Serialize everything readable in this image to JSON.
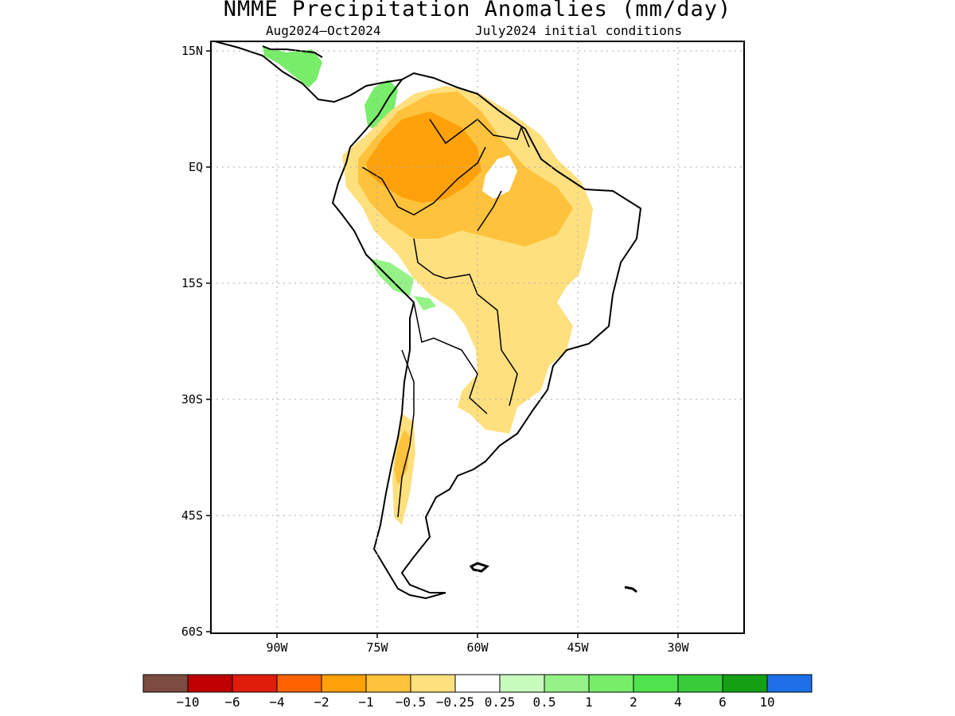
{
  "title": "NMME Precipitation Anomalies (mm/day)",
  "subtitle_left": "Aug2024–Oct2024",
  "subtitle_right": "July2024 initial conditions",
  "map": {
    "lat_labels": [
      "15N",
      "EQ",
      "15S",
      "30S",
      "45S",
      "60S"
    ],
    "lon_labels": [
      "90W",
      "75W",
      "60W",
      "45W",
      "30W"
    ]
  },
  "colorbar": {
    "colors": [
      "#7b4c3f",
      "#c00000",
      "#e01c0a",
      "#ff6200",
      "#ffa10a",
      "#ffc23c",
      "#ffe07f",
      "#ffffff",
      "#c8fcbe",
      "#94f286",
      "#78ed6a",
      "#4fe34e",
      "#38cc3a",
      "#13a113",
      "#1e6fe8"
    ],
    "tick_labels": [
      "−10",
      "−6",
      "−4",
      "−2",
      "−1",
      "−0.5",
      "−0.25",
      "0.25",
      "0.5",
      "1",
      "2",
      "4",
      "6",
      "10"
    ]
  }
}
